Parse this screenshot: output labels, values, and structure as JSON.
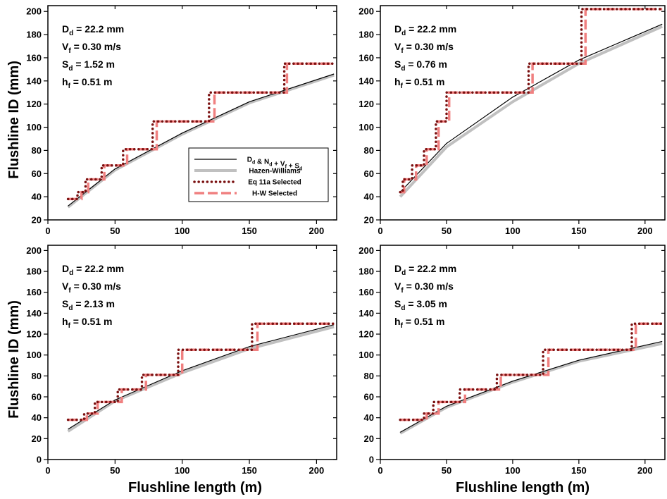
{
  "figure": {
    "ylabel": "Flushline ID (mm)",
    "xlabel": "Flushline length (m)",
    "legend": {
      "placement": "center-right of top-left panel",
      "entries": [
        {
          "key": "model",
          "label": "D_d & N_d + V_f + S_d",
          "color": "#000000",
          "style": "solid-thin"
        },
        {
          "key": "hw",
          "label": "Hazen-Williams",
          "color": "#c0c0c0",
          "style": "solid-thick"
        },
        {
          "key": "eq",
          "label": "Eq 11a Selected",
          "color": "#7a1010",
          "style": "dotted"
        },
        {
          "key": "hwsel",
          "label": "H-W Selected",
          "color": "#f08080",
          "style": "dashed"
        }
      ]
    }
  },
  "chart_data": [
    {
      "type": "line",
      "panel": "top-left",
      "annotations": [
        {
          "main": "D",
          "sub": "d",
          "rest": " = 22.2 mm"
        },
        {
          "main": "V",
          "sub": "f",
          "rest": " = 0.30 m/s"
        },
        {
          "main": "S",
          "sub": "d",
          "rest": " = 1.52 m"
        },
        {
          "main": "h",
          "sub": "f",
          "rest": " = 0.51 m"
        }
      ],
      "xlim": [
        0,
        215
      ],
      "ylim": [
        20,
        205
      ],
      "xticks": [
        0,
        50,
        100,
        150,
        200
      ],
      "yticks": [
        20,
        40,
        60,
        80,
        100,
        120,
        140,
        160,
        180,
        200
      ],
      "series": {
        "model": {
          "x": [
            15,
            50,
            100,
            150,
            213
          ],
          "y": [
            32,
            64,
            95,
            122,
            146
          ]
        },
        "hw": {
          "x": [
            15,
            50,
            100,
            150,
            213
          ],
          "y": [
            31,
            63,
            94,
            121,
            145
          ]
        },
        "eq": {
          "x": [
            15,
            22,
            22,
            28,
            28,
            40,
            40,
            56,
            56,
            78,
            78,
            120,
            120,
            176,
            176,
            213
          ],
          "y": [
            38,
            38,
            44,
            44,
            55,
            55,
            67,
            67,
            81,
            81,
            105,
            105,
            130,
            130,
            155,
            155
          ]
        },
        "hwsel": {
          "x": [
            15,
            25,
            25,
            30,
            30,
            42,
            42,
            59,
            59,
            81,
            81,
            124,
            124,
            178,
            178,
            213
          ],
          "y": [
            38,
            38,
            44,
            44,
            55,
            55,
            67,
            67,
            81,
            81,
            105,
            105,
            130,
            130,
            155,
            155
          ]
        }
      }
    },
    {
      "type": "line",
      "panel": "top-right",
      "annotations": [
        {
          "main": "D",
          "sub": "d",
          "rest": " = 22.2 mm"
        },
        {
          "main": "V",
          "sub": "f",
          "rest": " = 0.30 m/s"
        },
        {
          "main": "S",
          "sub": "d",
          "rest": " = 0.76 m"
        },
        {
          "main": "h",
          "sub": "f",
          "rest": " = 0.51 m"
        }
      ],
      "xlim": [
        0,
        215
      ],
      "ylim": [
        20,
        205
      ],
      "xticks": [
        0,
        50,
        100,
        150,
        200
      ],
      "yticks": [
        20,
        40,
        60,
        80,
        100,
        120,
        140,
        160,
        180,
        200
      ],
      "series": {
        "model": {
          "x": [
            15,
            50,
            100,
            150,
            213
          ],
          "y": [
            44,
            86,
            126,
            158,
            189
          ]
        },
        "hw": {
          "x": [
            15,
            50,
            100,
            150,
            213
          ],
          "y": [
            40,
            83,
            122,
            155,
            187
          ]
        },
        "eq": {
          "x": [
            15,
            17,
            17,
            24,
            24,
            33,
            33,
            42,
            42,
            50,
            50,
            76,
            76,
            112,
            112,
            152,
            152,
            213
          ],
          "y": [
            44,
            44,
            55,
            55,
            67,
            67,
            81,
            81,
            105,
            105,
            130,
            130,
            130,
            130,
            155,
            155,
            202,
            202
          ]
        },
        "hwsel": {
          "x": [
            15,
            18,
            18,
            27,
            27,
            35,
            35,
            44,
            44,
            52,
            52,
            80,
            80,
            115,
            115,
            155,
            155,
            213
          ],
          "y": [
            44,
            44,
            55,
            55,
            67,
            67,
            81,
            81,
            105,
            105,
            130,
            130,
            130,
            130,
            155,
            155,
            202,
            202
          ]
        }
      }
    },
    {
      "type": "line",
      "panel": "bottom-left",
      "annotations": [
        {
          "main": "D",
          "sub": "d",
          "rest": " = 22.2 mm"
        },
        {
          "main": "V",
          "sub": "f",
          "rest": " = 0.30 m/s"
        },
        {
          "main": "S",
          "sub": "d",
          "rest": " = 2.13 m"
        },
        {
          "main": "h",
          "sub": "f",
          "rest": " = 0.51 m"
        }
      ],
      "xlim": [
        0,
        215
      ],
      "ylim": [
        0,
        205
      ],
      "xticks": [
        0,
        50,
        100,
        150,
        200
      ],
      "yticks": [
        0,
        20,
        40,
        60,
        80,
        100,
        120,
        140,
        160,
        180,
        200
      ],
      "series": {
        "model": {
          "x": [
            15,
            50,
            100,
            150,
            213
          ],
          "y": [
            29,
            57,
            85,
            108,
            129
          ]
        },
        "hw": {
          "x": [
            15,
            50,
            100,
            150,
            213
          ],
          "y": [
            27,
            56,
            83,
            106,
            127
          ]
        },
        "eq": {
          "x": [
            15,
            27,
            27,
            35,
            35,
            52,
            52,
            70,
            70,
            97,
            97,
            152,
            152,
            213
          ],
          "y": [
            38,
            38,
            44,
            44,
            55,
            55,
            67,
            67,
            81,
            81,
            105,
            105,
            130,
            130
          ]
        },
        "hwsel": {
          "x": [
            15,
            29,
            29,
            37,
            37,
            55,
            55,
            73,
            73,
            100,
            100,
            156,
            156,
            213
          ],
          "y": [
            38,
            38,
            44,
            44,
            55,
            55,
            67,
            67,
            81,
            81,
            105,
            105,
            130,
            130
          ]
        }
      }
    },
    {
      "type": "line",
      "panel": "bottom-right",
      "annotations": [
        {
          "main": "D",
          "sub": "d",
          "rest": " = 22.2 mm"
        },
        {
          "main": "V",
          "sub": "f",
          "rest": " = 0.30 m/s"
        },
        {
          "main": "S",
          "sub": "d",
          "rest": " = 3.05 m"
        },
        {
          "main": "h",
          "sub": "f",
          "rest": " = 0.51 m"
        }
      ],
      "xlim": [
        0,
        215
      ],
      "ylim": [
        0,
        205
      ],
      "xticks": [
        0,
        50,
        100,
        150,
        200
      ],
      "yticks": [
        0,
        20,
        40,
        60,
        80,
        100,
        120,
        140,
        160,
        180,
        200
      ],
      "series": {
        "model": {
          "x": [
            15,
            50,
            100,
            150,
            213
          ],
          "y": [
            26,
            51,
            75,
            95,
            113
          ]
        },
        "hw": {
          "x": [
            15,
            50,
            100,
            150,
            213
          ],
          "y": [
            25,
            50,
            74,
            94,
            111
          ]
        },
        "eq": {
          "x": [
            15,
            33,
            33,
            40,
            40,
            60,
            60,
            88,
            88,
            123,
            123,
            190,
            190,
            213
          ],
          "y": [
            38,
            38,
            44,
            44,
            55,
            55,
            67,
            67,
            81,
            81,
            105,
            105,
            130,
            130
          ]
        },
        "hwsel": {
          "x": [
            15,
            35,
            35,
            44,
            44,
            64,
            64,
            91,
            91,
            127,
            127,
            193,
            193,
            213
          ],
          "y": [
            38,
            38,
            44,
            44,
            55,
            55,
            67,
            67,
            81,
            81,
            105,
            105,
            130,
            130
          ]
        }
      }
    }
  ]
}
